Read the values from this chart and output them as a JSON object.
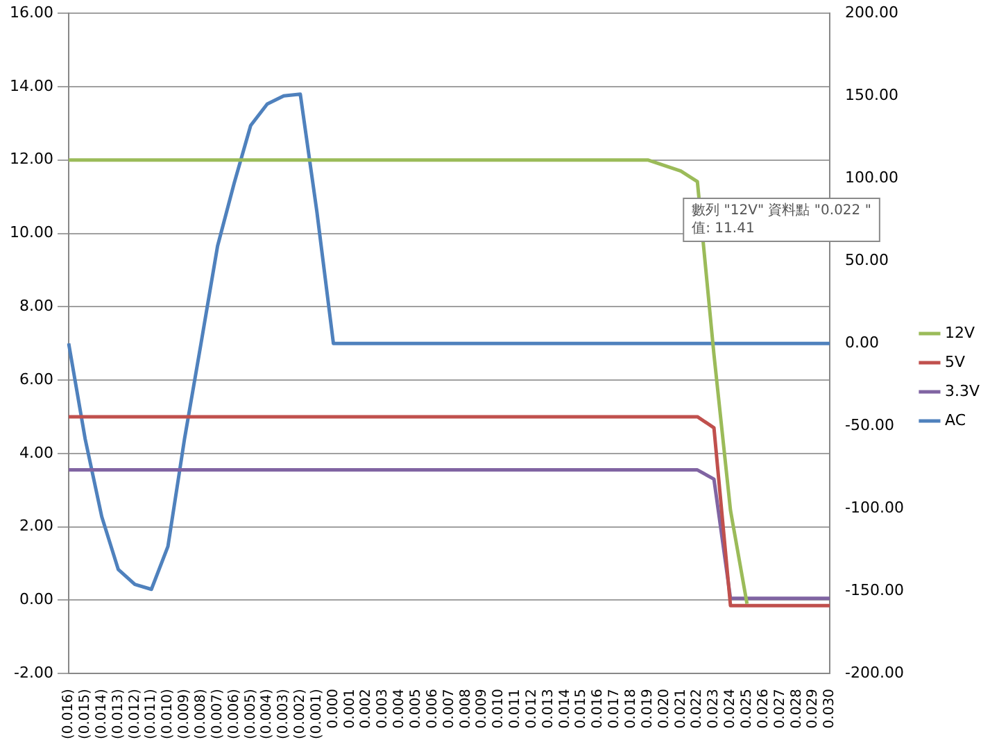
{
  "chart_data": {
    "type": "line",
    "categories": [
      "(0.016)",
      "(0.015)",
      "(0.014)",
      "(0.013)",
      "(0.012)",
      "(0.011)",
      "(0.010)",
      "(0.009)",
      "(0.008)",
      "(0.007)",
      "(0.006)",
      "(0.005)",
      "(0.004)",
      "(0.003)",
      "(0.002)",
      "(0.001)",
      "0.000",
      "0.001",
      "0.002",
      "0.003",
      "0.004",
      "0.005",
      "0.006",
      "0.007",
      "0.008",
      "0.009",
      "0.010",
      "0.011",
      "0.012",
      "0.013",
      "0.014",
      "0.015",
      "0.016",
      "0.017",
      "0.018",
      "0.019",
      "0.020",
      "0.021",
      "0.022",
      "0.023",
      "0.024",
      "0.025",
      "0.026",
      "0.027",
      "0.028",
      "0.029",
      "0.030"
    ],
    "series": [
      {
        "name": "12V",
        "color": "#9bbb59",
        "values": [
          12,
          12,
          12,
          12,
          12,
          12,
          12,
          12,
          12,
          12,
          12,
          12,
          12,
          12,
          12,
          12,
          12,
          12,
          12,
          12,
          12,
          12,
          12,
          12,
          12,
          12,
          12,
          12,
          12,
          12,
          12,
          12,
          12,
          12,
          12,
          12,
          11.85,
          11.7,
          11.41,
          6.7,
          2.45,
          -0.1,
          null,
          null,
          null,
          null,
          null
        ]
      },
      {
        "name": "5V",
        "color": "#c0504d",
        "values": [
          5,
          5,
          5,
          5,
          5,
          5,
          5,
          5,
          5,
          5,
          5,
          5,
          5,
          5,
          5,
          5,
          5,
          5,
          5,
          5,
          5,
          5,
          5,
          5,
          5,
          5,
          5,
          5,
          5,
          5,
          5,
          5,
          5,
          5,
          5,
          5,
          5,
          5,
          5,
          4.7,
          -0.15,
          -0.15,
          -0.15,
          -0.15,
          -0.15,
          -0.15,
          -0.15
        ]
      },
      {
        "name": "3.3V",
        "color": "#8064a2",
        "values": [
          3.55,
          3.55,
          3.55,
          3.55,
          3.55,
          3.55,
          3.55,
          3.55,
          3.55,
          3.55,
          3.55,
          3.55,
          3.55,
          3.55,
          3.55,
          3.55,
          3.55,
          3.55,
          3.55,
          3.55,
          3.55,
          3.55,
          3.55,
          3.55,
          3.55,
          3.55,
          3.55,
          3.55,
          3.55,
          3.55,
          3.55,
          3.55,
          3.55,
          3.55,
          3.55,
          3.55,
          3.55,
          3.55,
          3.55,
          3.3,
          0.05,
          0.05,
          0.05,
          0.05,
          0.05,
          0.05,
          0.05
        ]
      },
      {
        "name": "AC",
        "color": "#4f81bd",
        "axis": "y2",
        "values": [
          0,
          -58,
          -105,
          -137,
          -146,
          -149,
          -123,
          -58,
          0,
          59,
          97,
          132,
          145,
          150,
          151,
          80,
          0,
          0,
          0,
          0,
          0,
          0,
          0,
          0,
          0,
          0,
          0,
          0,
          0,
          0,
          0,
          0,
          0,
          0,
          0,
          0,
          0,
          0,
          0,
          0,
          0,
          0,
          0,
          0,
          0,
          0,
          0
        ]
      }
    ],
    "ylim": [
      -2,
      16
    ],
    "yticks": [
      {
        "value": -2,
        "label": "-2.00"
      },
      {
        "value": 0,
        "label": "0.00"
      },
      {
        "value": 2,
        "label": "2.00"
      },
      {
        "value": 4,
        "label": "4.00"
      },
      {
        "value": 6,
        "label": "6.00"
      },
      {
        "value": 8,
        "label": "8.00"
      },
      {
        "value": 10,
        "label": "10.00"
      },
      {
        "value": 12,
        "label": "12.00"
      },
      {
        "value": 14,
        "label": "14.00"
      },
      {
        "value": 16,
        "label": "16.00"
      }
    ],
    "y2lim": [
      -200,
      200
    ],
    "y2ticks": [
      {
        "value": -200,
        "label": "-200.00"
      },
      {
        "value": -150,
        "label": "-150.00"
      },
      {
        "value": -100,
        "label": "-100.00"
      },
      {
        "value": -50,
        "label": "-50.00"
      },
      {
        "value": 0,
        "label": "0.00"
      },
      {
        "value": 50,
        "label": "50.00"
      },
      {
        "value": 100,
        "label": "100.00"
      },
      {
        "value": 150,
        "label": "150.00"
      },
      {
        "value": 200,
        "label": "200.00"
      }
    ],
    "grid": "y",
    "legend": "right",
    "marker": "none",
    "line_style": "solid",
    "annotations": [
      {
        "text": "數列 \"12V\" 資料點 \"0.022 \"\n值: 11.41",
        "x": "0.022",
        "y": 11.41
      }
    ]
  }
}
